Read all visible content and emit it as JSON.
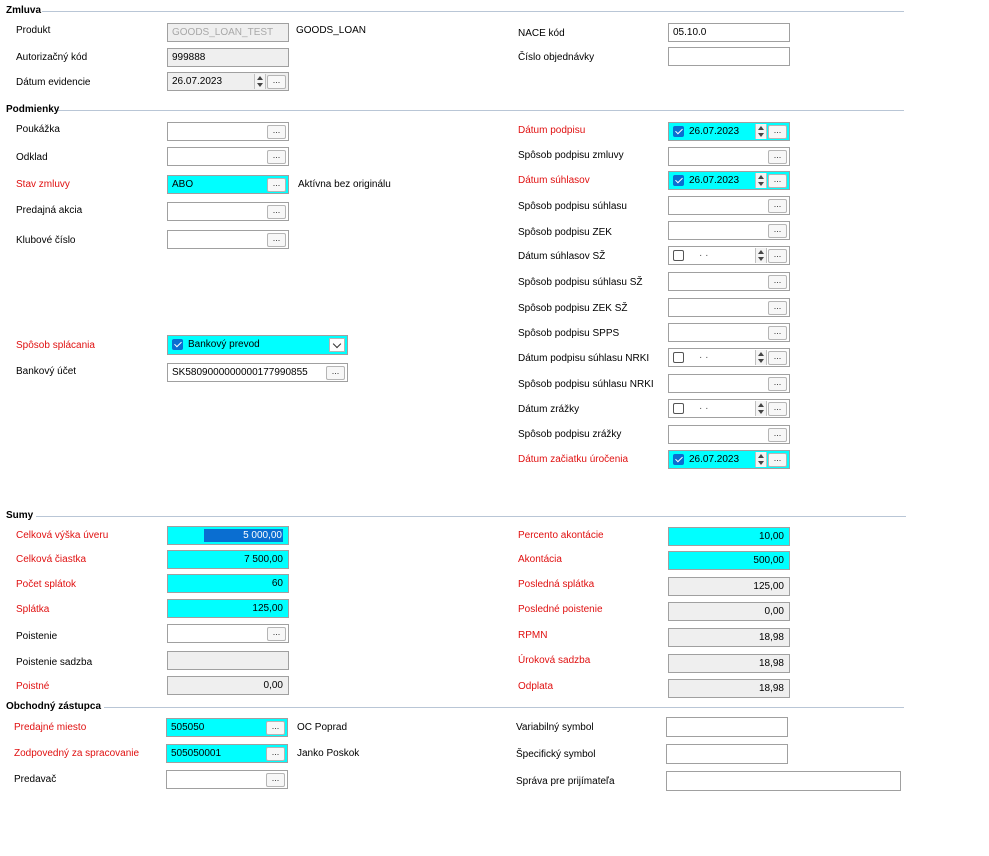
{
  "sections": {
    "zmluva": "Zmluva",
    "podmienky": "Podmienky",
    "sumy": "Sumy",
    "obchodny_zastupca": "Obchodný zástupca"
  },
  "zmluva": {
    "produkt": {
      "label": "Produkt",
      "value": "GOODS_LOAN_TEST",
      "desc": "GOODS_LOAN"
    },
    "autorizacny_kod": {
      "label": "Autorizačný kód",
      "value": "999888"
    },
    "datum_evidencie": {
      "label": "Dátum evidencie",
      "value": "26.07.2023"
    },
    "nace_kod": {
      "label": "NACE kód",
      "value": "05.10.0"
    },
    "cislo_objednavky": {
      "label": "Číslo objednávky",
      "value": ""
    }
  },
  "podmienky": {
    "poukazka": {
      "label": "Poukážka",
      "value": ""
    },
    "odklad": {
      "label": "Odklad",
      "value": ""
    },
    "stav_zmluvy": {
      "label": "Stav zmluvy",
      "value": "ABO",
      "desc": "Aktívna bez originálu"
    },
    "predajna_akcia": {
      "label": "Predajná akcia",
      "value": ""
    },
    "klubove_cislo": {
      "label": "Klubové číslo",
      "value": ""
    },
    "sposob_splacania": {
      "label": "Spôsob splácania",
      "value": "Bankový prevod"
    },
    "bankovy_ucet": {
      "label": "Bankový účet",
      "value": "SK5809000000000177990855"
    },
    "datum_podpisu": {
      "label": "Dátum podpisu",
      "value": "26.07.2023"
    },
    "sposob_podpisu_zmluvy": {
      "label": "Spôsob podpisu zmluvy",
      "value": ""
    },
    "datum_suhlasov": {
      "label": "Dátum súhlasov",
      "value": "26.07.2023"
    },
    "sposob_podpisu_suhlasu": {
      "label": "Spôsob podpisu súhlasu",
      "value": ""
    },
    "sposob_podpisu_zek": {
      "label": "Spôsob podpisu ZEK",
      "value": ""
    },
    "datum_suhlasov_sz": {
      "label": "Dátum súhlasov SŽ",
      "value": ""
    },
    "sposob_podpisu_suhlasu_sz": {
      "label": "Spôsob podpisu súhlasu SŽ",
      "value": ""
    },
    "sposob_podpisu_zek_sz": {
      "label": "Spôsob podpisu ZEK SŽ",
      "value": ""
    },
    "sposob_podpisu_spps": {
      "label": "Spôsob podpisu SPPS",
      "value": ""
    },
    "datum_podpisu_suhlasu_nrki": {
      "label": "Dátum podpisu súhlasu NRKI",
      "value": ""
    },
    "sposob_podpisu_suhlasu_nrki": {
      "label": "Spôsob podpisu súhlasu NRKI",
      "value": ""
    },
    "datum_zrazky": {
      "label": "Dátum zrážky",
      "value": ""
    },
    "sposob_podpisu_zrazky": {
      "label": "Spôsob podpisu zrážky",
      "value": ""
    },
    "datum_zaciatku_urocenia": {
      "label": "Dátum začiatku úročenia",
      "value": "26.07.2023"
    },
    "empty_date_dots": "·      ·"
  },
  "sumy": {
    "celkova_vyska_uveru": {
      "label": "Celková výška úveru",
      "value": "5 000,00"
    },
    "celkova_ciastka": {
      "label": "Celková čiastka",
      "value": "7 500,00"
    },
    "pocet_splatok": {
      "label": "Počet splátok",
      "value": "60"
    },
    "splatka": {
      "label": "Splátka",
      "value": "125,00"
    },
    "poistenie": {
      "label": "Poistenie",
      "value": ""
    },
    "poistenie_sadzba": {
      "label": "Poistenie sadzba",
      "value": ""
    },
    "poistne": {
      "label": "Poistné",
      "value": "0,00"
    },
    "percento_akontacie": {
      "label": "Percento akontácie",
      "value": "10,00"
    },
    "akontacia": {
      "label": "Akontácia",
      "value": "500,00"
    },
    "posledna_splatka": {
      "label": "Posledná splátka",
      "value": "125,00"
    },
    "posledne_poistenie": {
      "label": "Posledné poistenie",
      "value": "0,00"
    },
    "rpmn": {
      "label": "RPMN",
      "value": "18,98"
    },
    "urokova_sadzba": {
      "label": "Úroková sadzba",
      "value": "18,98"
    },
    "odplata": {
      "label": "Odplata",
      "value": "18,98"
    }
  },
  "obchodny_zastupca": {
    "predajne_miesto": {
      "label": "Predajné miesto",
      "value": "505050",
      "desc": "OC Poprad"
    },
    "zodpovedny": {
      "label": "Zodpovedný za spracovanie",
      "value": "505050001",
      "desc": "Janko Poskok"
    },
    "predavac": {
      "label": "Predavač",
      "value": ""
    },
    "variabilny_symbol": {
      "label": "Variabilný symbol",
      "value": ""
    },
    "specificky_symbol": {
      "label": "Špecifický symbol",
      "value": ""
    },
    "sprava": {
      "label": "Správa pre prijímateľa",
      "value": ""
    }
  },
  "ui": {
    "lookup_button": "...",
    "colors": {
      "required_label": "#e01010",
      "required_field": "#00ffff",
      "readonly_field": "#efefef",
      "selection": "#0a6ed1"
    }
  }
}
